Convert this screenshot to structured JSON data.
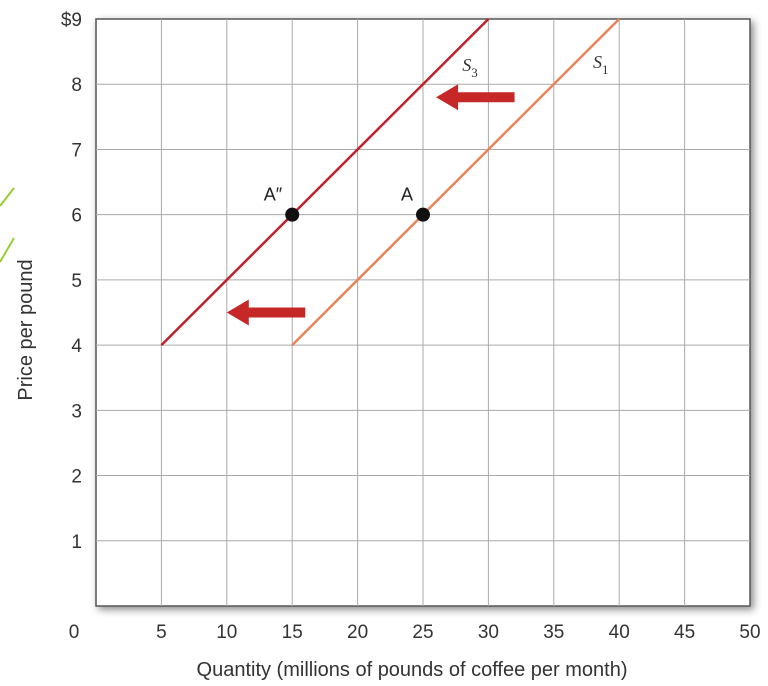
{
  "chart_data": {
    "type": "line",
    "xlabel": "Quantity (millions of pounds of coffee per month)",
    "ylabel": "Price per pound",
    "xlim": [
      0,
      50
    ],
    "ylim": [
      0,
      9
    ],
    "x_ticks": [
      0,
      5,
      10,
      15,
      20,
      25,
      30,
      35,
      40,
      45,
      50
    ],
    "x_tick_labels": [
      "0",
      "5",
      "10",
      "15",
      "20",
      "25",
      "30",
      "35",
      "40",
      "45",
      "50"
    ],
    "y_ticks": [
      1,
      2,
      3,
      4,
      5,
      6,
      7,
      8,
      9
    ],
    "y_tick_labels": [
      "1",
      "2",
      "3",
      "4",
      "5",
      "6",
      "7",
      "8",
      "$9"
    ],
    "grid": true,
    "series": [
      {
        "name": "S",
        "name_sub": "3",
        "color": "#c0202a",
        "points": [
          [
            5,
            4
          ],
          [
            30,
            9
          ]
        ],
        "label_at": [
          28,
          8.2
        ]
      },
      {
        "name": "S",
        "name_sub": "1",
        "color": "#e8845a",
        "points": [
          [
            15,
            4
          ],
          [
            40,
            9
          ]
        ],
        "label_at": [
          38,
          8.25
        ]
      }
    ],
    "points": [
      {
        "label": "A″",
        "x": 15,
        "y": 6,
        "label_anchor": "upper-left"
      },
      {
        "label": "A",
        "x": 25,
        "y": 6,
        "label_anchor": "upper-left"
      }
    ],
    "arrows": [
      {
        "direction": "left",
        "tip": [
          26,
          7.8
        ],
        "tail": [
          32,
          7.8
        ],
        "color": "#c62828"
      },
      {
        "direction": "left",
        "tip": [
          10,
          4.5
        ],
        "tail": [
          16,
          4.5
        ],
        "color": "#c62828"
      }
    ]
  }
}
